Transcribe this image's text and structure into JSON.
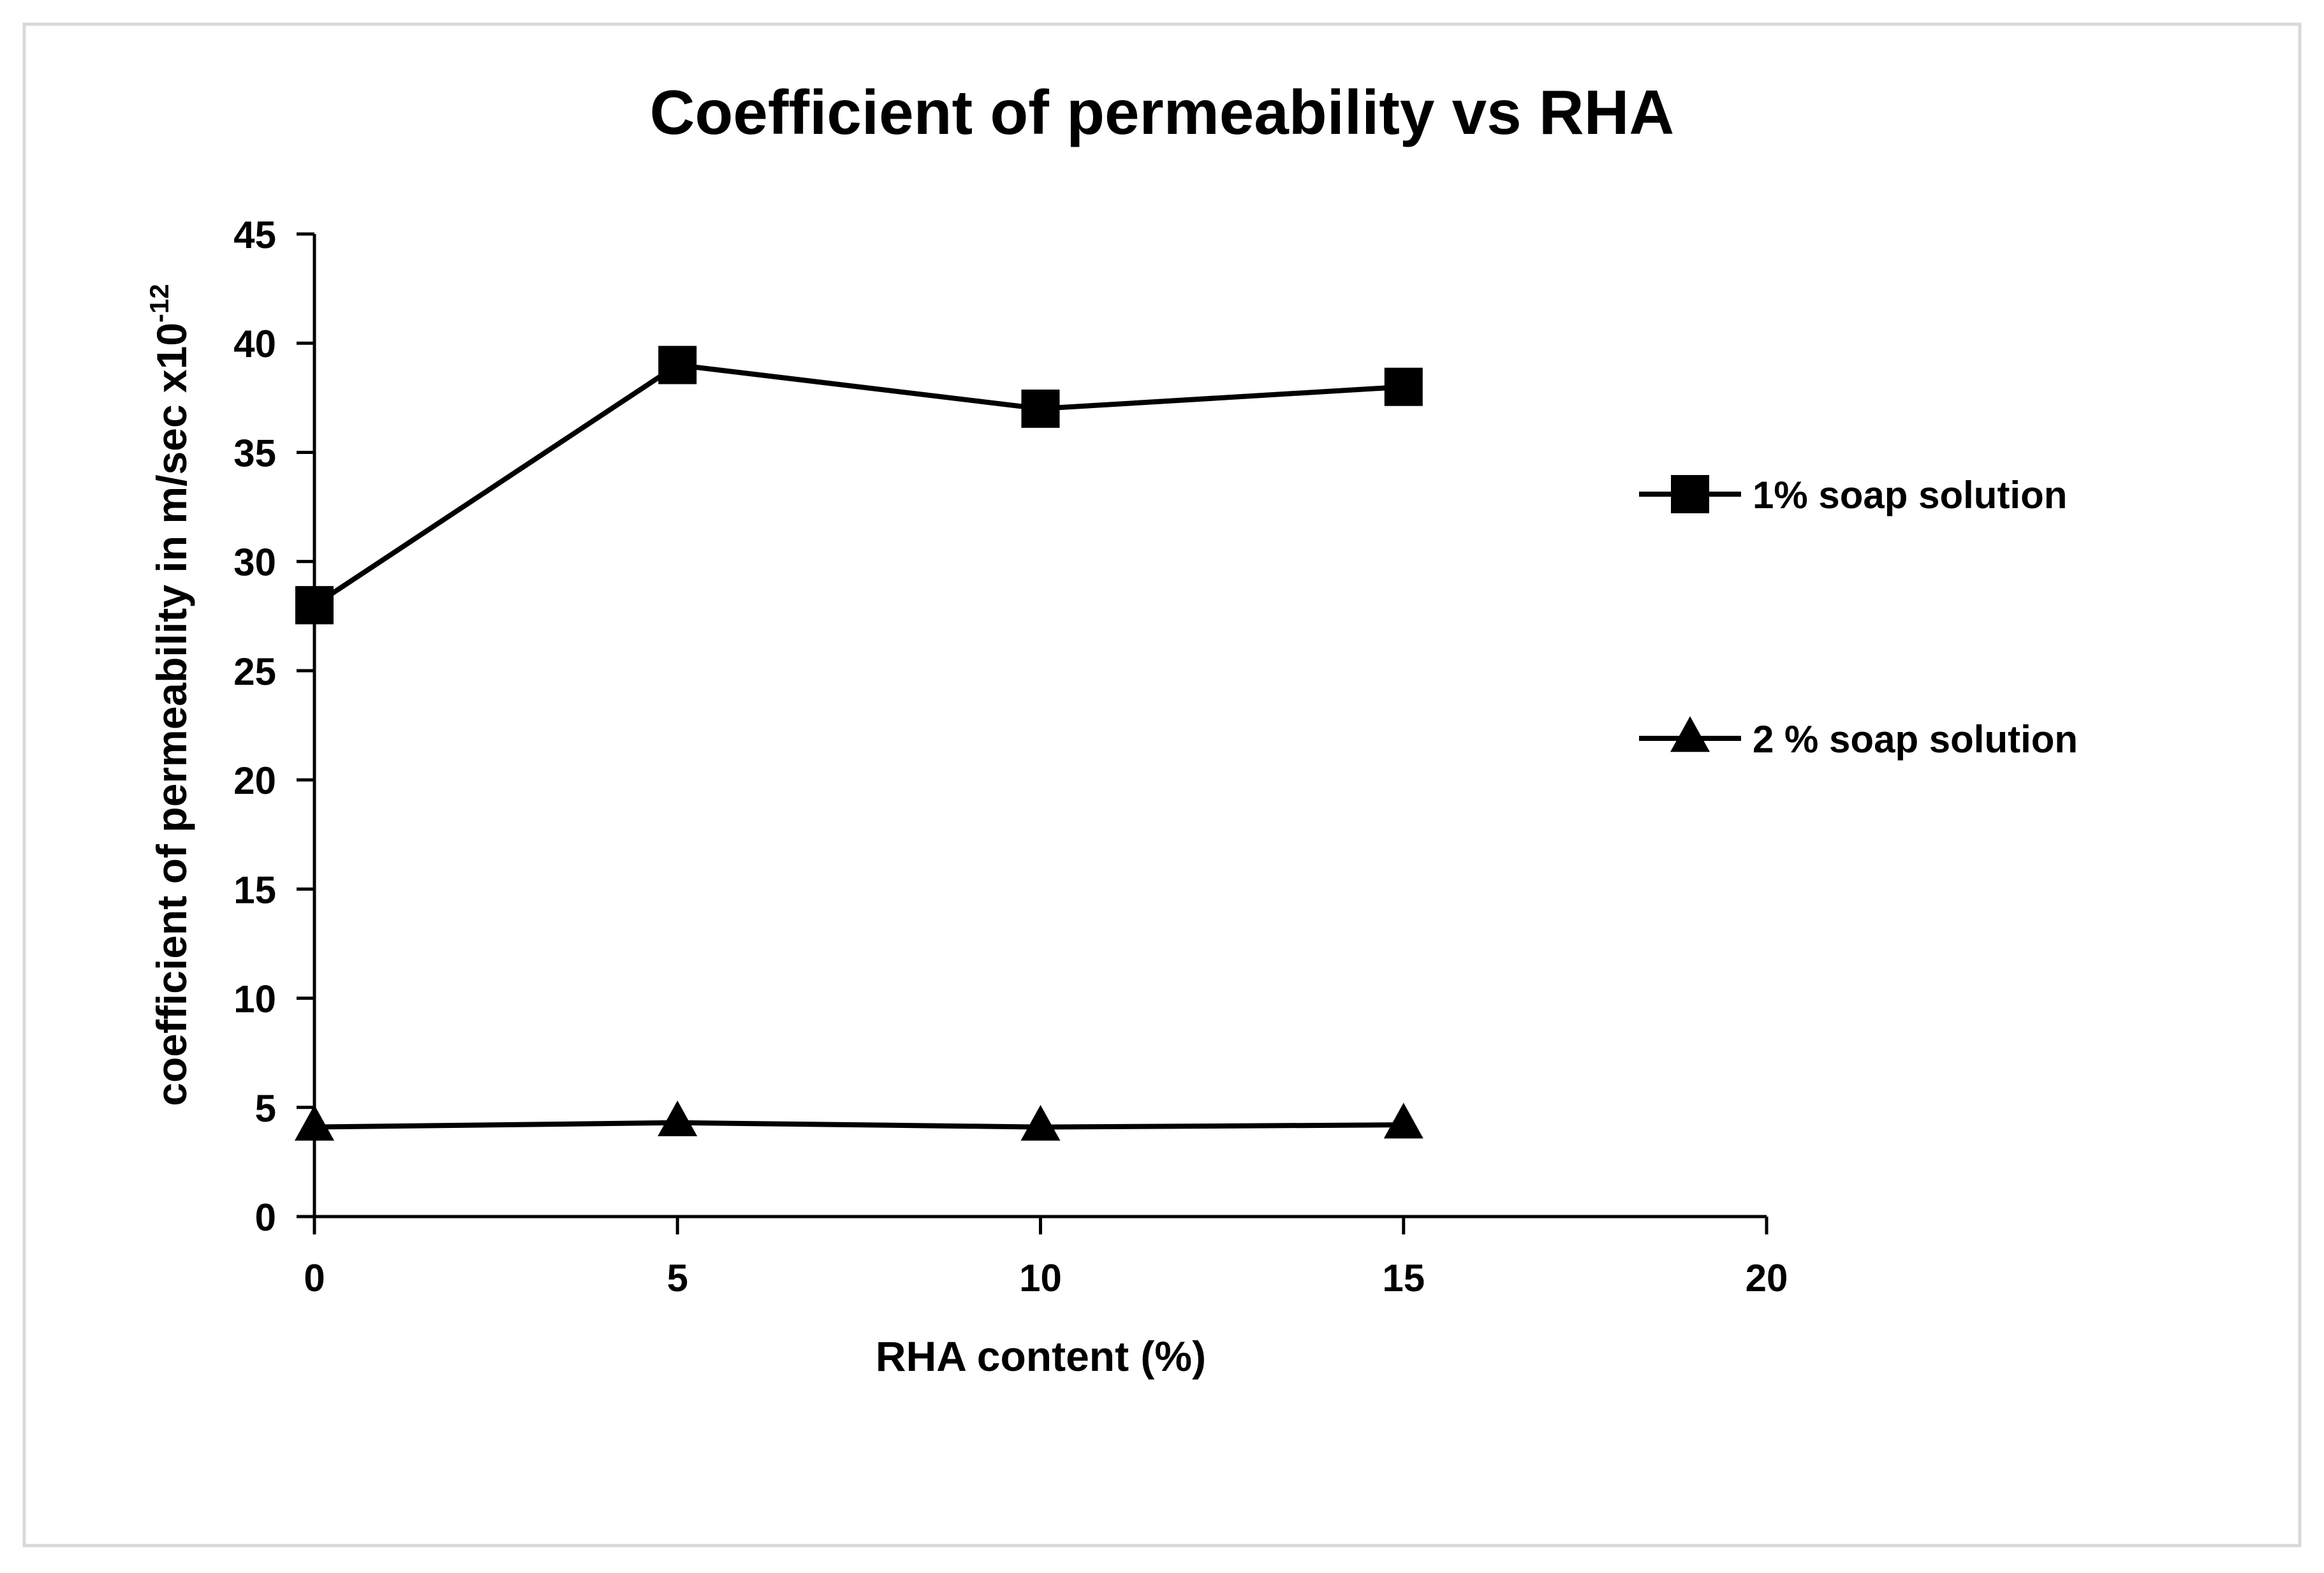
{
  "chart_data": {
    "type": "line",
    "title": "Coefficient of permeability vs RHA",
    "xlabel": "RHA content (%)",
    "ylabel": {
      "main": "coefficient of  permeability in m/sec x10",
      "superscript": "-12"
    },
    "xlim": [
      0,
      20
    ],
    "ylim": [
      0,
      45
    ],
    "x_ticks": [
      0,
      5,
      10,
      15,
      20
    ],
    "y_ticks": [
      0,
      5,
      10,
      15,
      20,
      25,
      30,
      35,
      40,
      45
    ],
    "grid": false,
    "legend_position": "right",
    "x": [
      0,
      5,
      10,
      15
    ],
    "series": [
      {
        "name": "1% soap solution",
        "marker": "square",
        "color": "#000000",
        "values": [
          28,
          39,
          37,
          38
        ]
      },
      {
        "name": "2 % soap solution",
        "marker": "triangle",
        "color": "#000000",
        "values": [
          4.1,
          4.3,
          4.1,
          4.2
        ]
      }
    ]
  },
  "colors": {
    "background": "#ffffff",
    "frame": "#d9d9d9",
    "ink": "#000000"
  }
}
